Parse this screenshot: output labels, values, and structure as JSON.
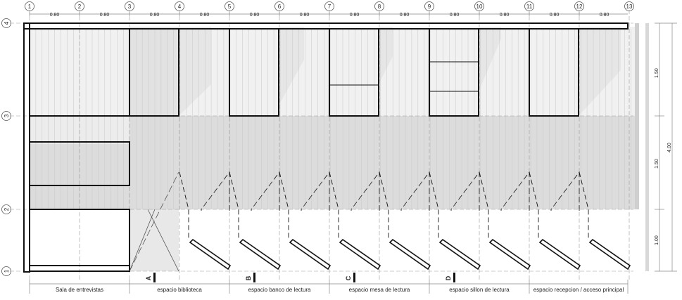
{
  "grid_columns": [
    "1",
    "2",
    "3",
    "4",
    "5",
    "6",
    "7",
    "8",
    "9",
    "10",
    "11",
    "12",
    "13"
  ],
  "grid_rows": [
    "1",
    "2",
    "3",
    "4"
  ],
  "bay_dimension": "0.80",
  "vertical_dimensions": {
    "upper": "1.50",
    "middle": "1.50",
    "lower": "1.00",
    "total": "4.00"
  },
  "section_markers": [
    "A",
    "B",
    "C",
    "D"
  ],
  "spaces": [
    "Sala de entrevistas",
    "espacio biblioteca",
    "espacio banco de lectura",
    "espacio mesa de lectura",
    "espacio sillon de lectura",
    "espacio recepcion / acceso principal"
  ]
}
